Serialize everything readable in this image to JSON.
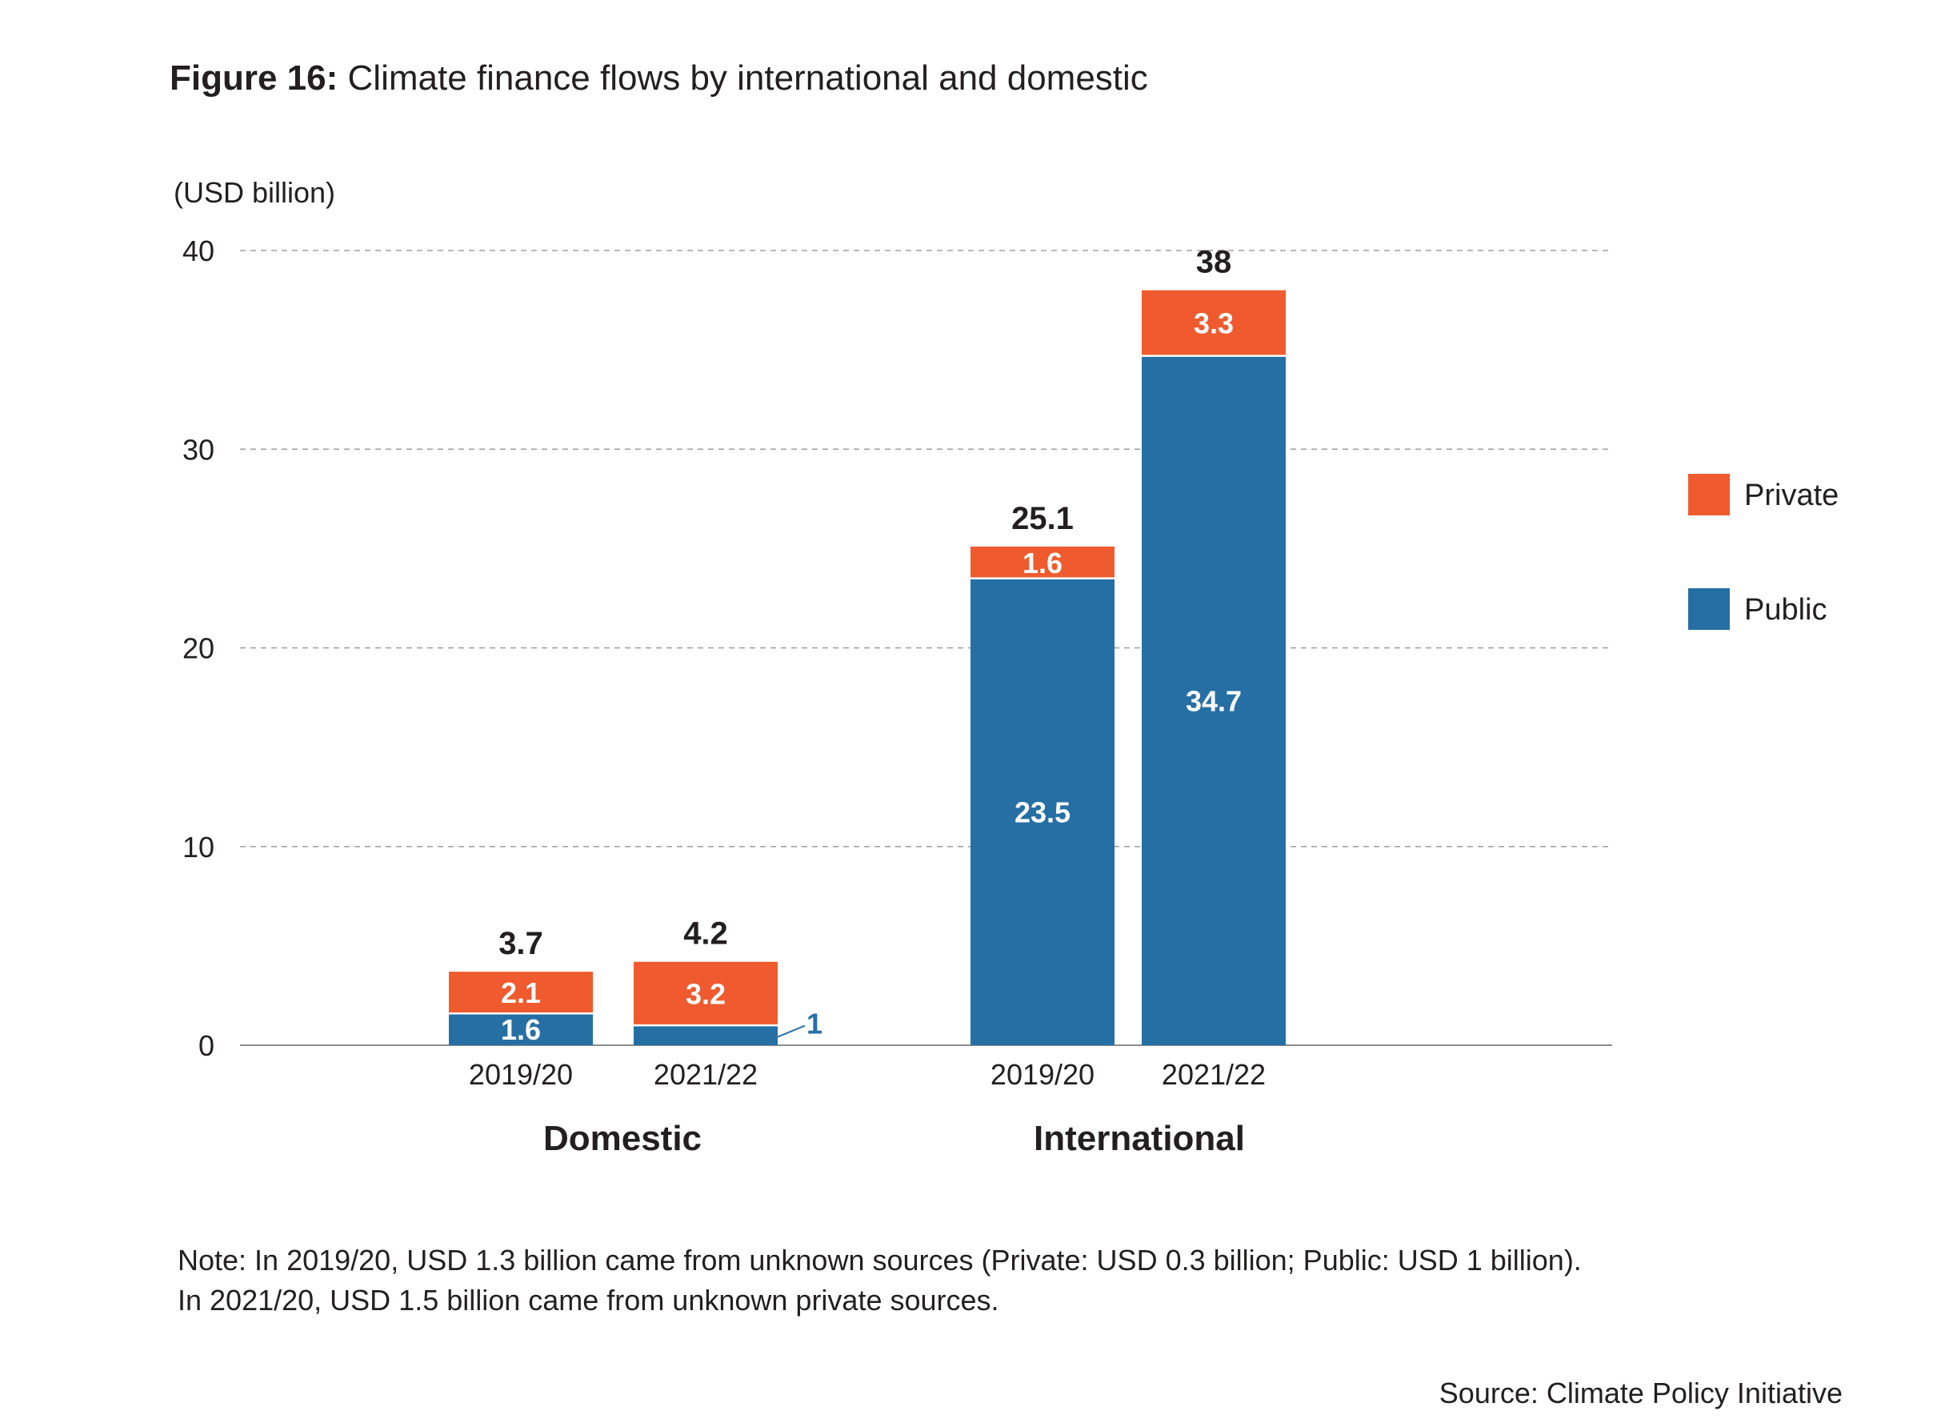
{
  "figure": {
    "label": "Figure 16:",
    "title": "Climate finance flows by international and domestic"
  },
  "chart_data": {
    "type": "bar",
    "stacked": true,
    "unit_label": "(USD billion)",
    "ylim": [
      0,
      40
    ],
    "yticks": [
      0,
      10,
      20,
      30,
      40
    ],
    "grid": true,
    "legend_position": "right",
    "groups": [
      {
        "name": "Domestic",
        "bars": [
          {
            "category": "2019/20",
            "public": 1.6,
            "private": 2.1,
            "total": 3.7,
            "public_label": "1.6",
            "private_label": "2.1",
            "total_label": "3.7"
          },
          {
            "category": "2021/22",
            "public": 1.0,
            "private": 3.2,
            "total": 4.2,
            "public_label": "1",
            "private_label": "3.2",
            "total_label": "4.2"
          }
        ]
      },
      {
        "name": "International",
        "bars": [
          {
            "category": "2019/20",
            "public": 23.5,
            "private": 1.6,
            "total": 25.1,
            "public_label": "23.5",
            "private_label": "1.6",
            "total_label": "25.1"
          },
          {
            "category": "2021/22",
            "public": 34.7,
            "private": 3.3,
            "total": 38,
            "public_label": "34.7",
            "private_label": "3.3",
            "total_label": "38"
          }
        ]
      }
    ],
    "series": [
      {
        "name": "Private",
        "key": "private",
        "color": "#ef5a2e"
      },
      {
        "name": "Public",
        "key": "public",
        "color": "#266fa4"
      }
    ]
  },
  "note": {
    "lead": "Note",
    "line1": ": In 2019/20, USD 1.3 billion came from unknown sources (Private: USD 0.3 billion; Public: USD 1 billion).",
    "line2": "In 2021/20, USD 1.5 billion came from unknown private sources."
  },
  "source": "Source: Climate Policy Initiative"
}
